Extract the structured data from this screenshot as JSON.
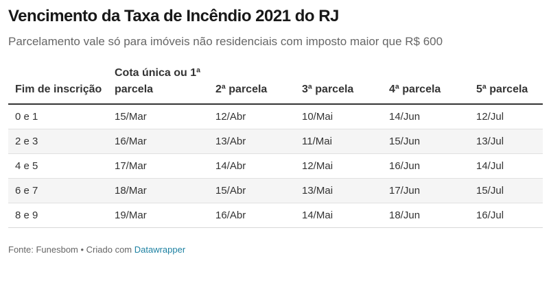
{
  "title": "Vencimento da Taxa de Incêndio 2021 do RJ",
  "subtitle": "Parcelamento vale só para imóveis não residenciais com imposto maior que R$ 600",
  "table": {
    "headers": [
      "Fim de inscrição",
      "Cota única ou 1ª parcela",
      "2ª parcela",
      "3ª parcela",
      "4ª parcela",
      "5ª parcela"
    ],
    "rows": [
      [
        "0 e 1",
        "15/Mar",
        "12/Abr",
        "10/Mai",
        "14/Jun",
        "12/Jul"
      ],
      [
        "2 e 3",
        "16/Mar",
        "13/Abr",
        "11/Mai",
        "15/Jun",
        "13/Jul"
      ],
      [
        "4 e 5",
        "17/Mar",
        "14/Abr",
        "12/Mai",
        "16/Jun",
        "14/Jul"
      ],
      [
        "6 e 7",
        "18/Mar",
        "15/Abr",
        "13/Mai",
        "17/Jun",
        "15/Jul"
      ],
      [
        "8 e 9",
        "19/Mar",
        "16/Abr",
        "14/Mai",
        "18/Jun",
        "16/Jul"
      ]
    ]
  },
  "footer": {
    "source": "Fonte: Funesbom • Criado com ",
    "link_text": "Datawrapper"
  }
}
